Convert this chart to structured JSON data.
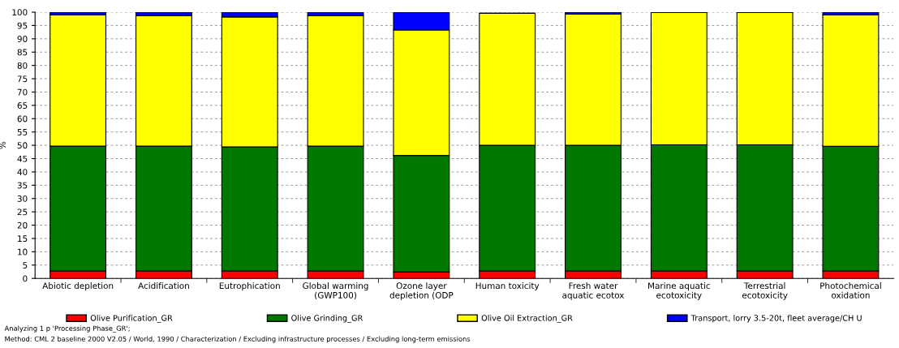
{
  "chart_data": {
    "type": "bar",
    "stacked": true,
    "ylabel": "%",
    "categories": [
      "Abiotic depletion",
      "Acidification",
      "Eutrophication",
      "Global warming\n(GWP100)",
      "Ozone layer\ndepletion (ODP",
      "Human toxicity",
      "Fresh water\naquatic ecotox",
      "Marine aquatic\necotoxicity",
      "Terrestrial\necotoxicity",
      "Photochemical\noxidation"
    ],
    "series": [
      {
        "name": "Olive Purification_GR",
        "color": "#ff0000",
        "values": [
          2.8,
          2.8,
          2.8,
          2.8,
          2.4,
          2.8,
          2.8,
          2.8,
          2.8,
          2.8
        ]
      },
      {
        "name": "Olive Grinding_GR",
        "color": "#007800",
        "values": [
          46.9,
          46.9,
          46.6,
          46.9,
          43.8,
          47.2,
          47.2,
          47.4,
          47.4,
          46.8
        ]
      },
      {
        "name": "Olive Oil Extraction_GR",
        "color": "#ffff00",
        "values": [
          49.3,
          49.0,
          48.8,
          49.0,
          47.1,
          49.6,
          49.3,
          49.7,
          49.7,
          49.4
        ]
      },
      {
        "name": "Transport, lorry 3.5-20t, fleet average/CH U",
        "color": "#0000ff",
        "values": [
          1.0,
          1.3,
          1.8,
          1.3,
          6.7,
          null,
          0.7,
          null,
          null,
          1.0
        ]
      }
    ],
    "ylim": [
      0,
      100
    ],
    "yticks": [
      0,
      5,
      10,
      15,
      20,
      25,
      30,
      35,
      40,
      45,
      50,
      55,
      60,
      65,
      70,
      75,
      80,
      85,
      90,
      95,
      100
    ],
    "grid": "y",
    "legend": "bottom",
    "annotations": [
      "Analyzing 1 p 'Processing Phase_GR';",
      "Method: CML 2 baseline 2000 V2.05 / World, 1990 / Characterization / Excluding infrastructure processes / Excluding long-term emissions"
    ]
  }
}
